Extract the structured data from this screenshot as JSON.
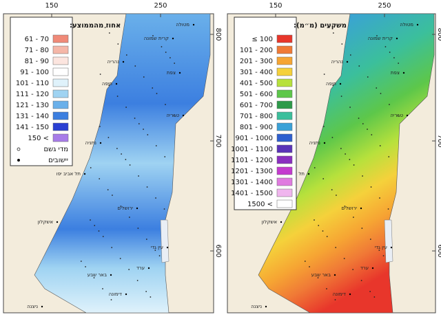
{
  "axes": {
    "x_ticks": [
      150,
      250
    ],
    "y_ticks": [
      800,
      700,
      600
    ]
  },
  "places": [
    "מטולה",
    "קרית שמונה",
    "נהריה",
    "צפת",
    "חיפה",
    "טבריה",
    "נתניה",
    "תל אביב יפו",
    "ירושלים",
    "אשקלון",
    "עין גדי",
    "באר שבע",
    "ערד",
    "דימונה",
    "ניצנה"
  ],
  "maps": [
    {
      "legend_title": "אחוז מהממוצע:",
      "legend": [
        {
          "label": "61 - 70",
          "color": "#f08a78"
        },
        {
          "label": "71 - 80",
          "color": "#f5b7a8"
        },
        {
          "label": "81 - 90",
          "color": "#fce5df"
        },
        {
          "label": "91 - 100",
          "color": "#ffffff"
        },
        {
          "label": "101 - 110",
          "color": "#dff2fb"
        },
        {
          "label": "111 - 120",
          "color": "#9fd3f2"
        },
        {
          "label": "121 - 130",
          "color": "#6ab0ea"
        },
        {
          "label": "131 - 140",
          "color": "#3c7fe0"
        },
        {
          "label": "141 - 150",
          "color": "#2a3fd2"
        },
        {
          "label": "150 <",
          "color": "#a77ce8"
        }
      ],
      "symbols": [
        "מדי גשם",
        "יישובים"
      ]
    },
    {
      "legend_title": "משקעים (מ״מ):",
      "legend": [
        {
          "label": "≤ 100",
          "color": "#e8362b"
        },
        {
          "label": "101 - 200",
          "color": "#f07a36"
        },
        {
          "label": "201 - 300",
          "color": "#f6a533"
        },
        {
          "label": "301 - 400",
          "color": "#f5d13b"
        },
        {
          "label": "401 - 500",
          "color": "#b7e13c"
        },
        {
          "label": "501 - 600",
          "color": "#5dc74a"
        },
        {
          "label": "601 - 700",
          "color": "#2d9a4a"
        },
        {
          "label": "701 - 800",
          "color": "#3bbf9c"
        },
        {
          "label": "801 - 900",
          "color": "#3aa1d8"
        },
        {
          "label": "901 - 1000",
          "color": "#2e5fcf"
        },
        {
          "label": "1001 - 1100",
          "color": "#5a33b8"
        },
        {
          "label": "1101 - 1200",
          "color": "#8a2fc0"
        },
        {
          "label": "1201 - 1300",
          "color": "#c43bcf"
        },
        {
          "label": "1301 - 1400",
          "color": "#e07be0"
        },
        {
          "label": "1401 - 1500",
          "color": "#f0b5ee"
        },
        {
          "label": "1500 <",
          "color": "#ffffff"
        }
      ]
    }
  ]
}
